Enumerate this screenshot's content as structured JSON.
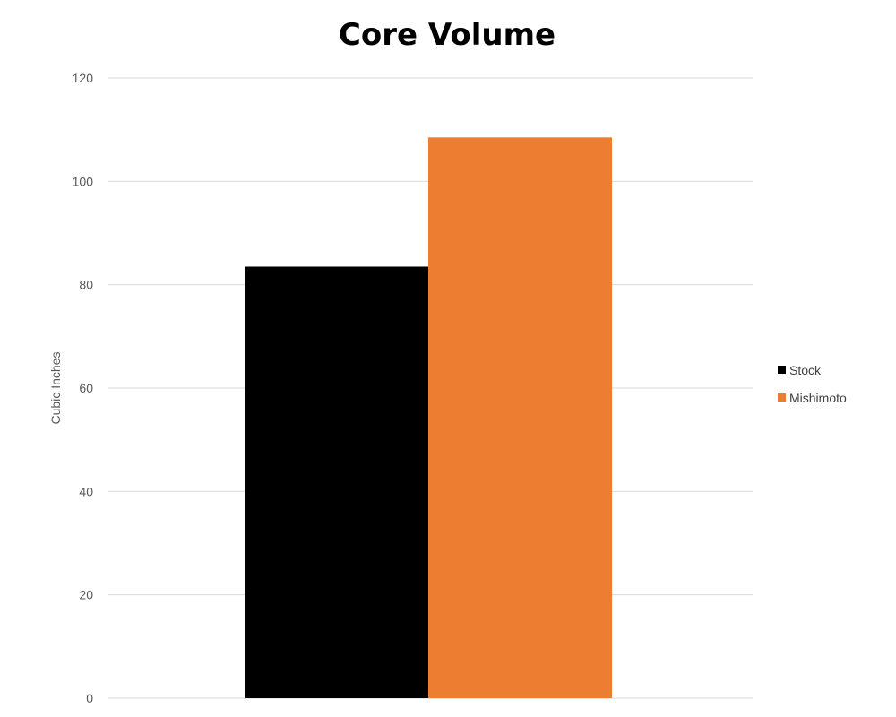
{
  "chart_data": {
    "type": "bar",
    "title": "Core Volume",
    "ylabel": "Cubic Inches",
    "xlabel": "",
    "ylim": [
      0,
      120
    ],
    "yticks": [
      0,
      20,
      40,
      60,
      80,
      100,
      120
    ],
    "grid": true,
    "legend_position": "right",
    "categories": [
      ""
    ],
    "series": [
      {
        "name": "Stock",
        "values": [
          83.5
        ],
        "color": "#000000"
      },
      {
        "name": "Mishimoto",
        "values": [
          108.5
        ],
        "color": "#ed7d31"
      }
    ]
  }
}
